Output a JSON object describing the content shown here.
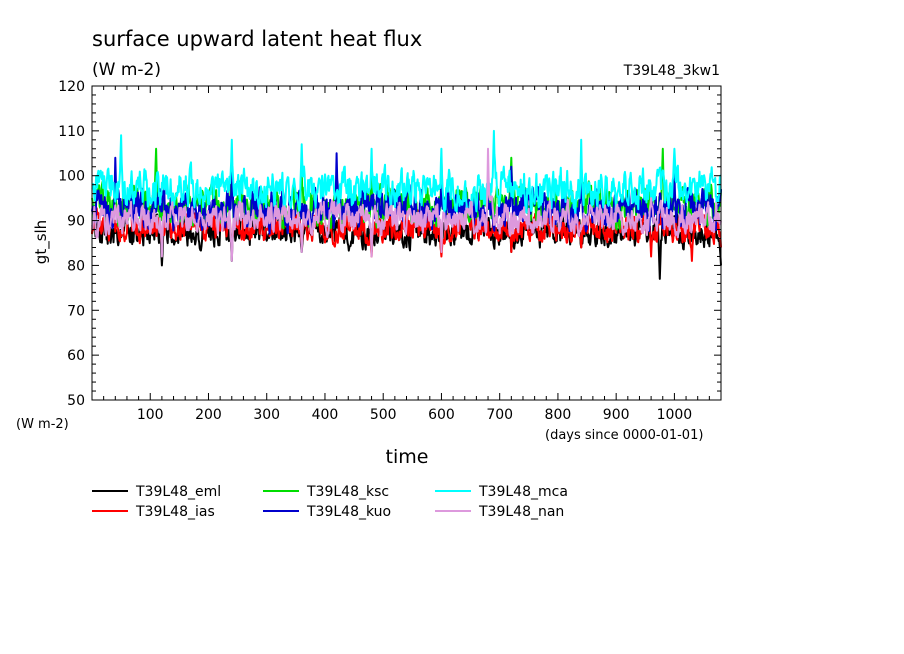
{
  "chart_data": {
    "type": "line",
    "title": "surface upward latent heat flux",
    "units": "(W m-2)",
    "run_label": "T39L48_3kw1",
    "ylabel": "gt_slh",
    "y_unit_label": "(W m-2)",
    "xlabel": "time",
    "x_unit_label": "(days since 0000-01-01)",
    "xlim": [
      0,
      1080
    ],
    "ylim": [
      50,
      120
    ],
    "xticks": [
      100,
      200,
      300,
      400,
      500,
      600,
      700,
      800,
      900,
      1000
    ],
    "yticks": [
      50,
      60,
      70,
      80,
      90,
      100,
      110,
      120
    ],
    "legend_position": "bottom",
    "series": [
      {
        "name": "T39L48_eml",
        "color": "#000000",
        "mean": 87.5,
        "amp": 3.5,
        "x": [
          0,
          120,
          240,
          360,
          480,
          600,
          720,
          840,
          960,
          975,
          1080
        ],
        "y": [
          87,
          80,
          81,
          83,
          83,
          83,
          83,
          84,
          84,
          77,
          80
        ]
      },
      {
        "name": "T39L48_ias",
        "color": "#ff0000",
        "mean": 88.5,
        "amp": 3.5,
        "x": [
          0,
          120,
          240,
          360,
          480,
          600,
          720,
          840,
          960,
          1030,
          1080
        ],
        "y": [
          87,
          84,
          84,
          84,
          82,
          82,
          83,
          84,
          82,
          81,
          84
        ]
      },
      {
        "name": "T39L48_ksc",
        "color": "#00dd00",
        "mean": 93.5,
        "amp": 4.5,
        "x": [
          0,
          110,
          240,
          360,
          480,
          600,
          720,
          840,
          980,
          1080
        ],
        "y": [
          95,
          106,
          103,
          101,
          101,
          104,
          104,
          104,
          106,
          97
        ]
      },
      {
        "name": "T39L48_kuo",
        "color": "#0000cc",
        "mean": 92.5,
        "amp": 4.5,
        "x": [
          0,
          40,
          240,
          420,
          600,
          720,
          840,
          1000,
          1080
        ],
        "y": [
          92,
          104,
          102,
          105,
          100,
          102,
          100,
          101,
          97
        ]
      },
      {
        "name": "T39L48_mca",
        "color": "#00ffff",
        "mean": 97,
        "amp": 4.5,
        "x": [
          0,
          50,
          240,
          360,
          480,
          600,
          690,
          840,
          1000,
          1080
        ],
        "y": [
          97,
          109,
          108,
          107,
          106,
          106,
          110,
          108,
          106,
          100
        ]
      },
      {
        "name": "T39L48_nan",
        "color": "#dd99dd",
        "mean": 90.5,
        "amp": 3.5,
        "x": [
          0,
          120,
          240,
          360,
          480,
          600,
          680,
          840,
          960,
          1080
        ],
        "y": [
          89,
          82,
          81,
          83,
          82,
          83,
          106,
          88,
          95,
          90
        ]
      }
    ]
  }
}
